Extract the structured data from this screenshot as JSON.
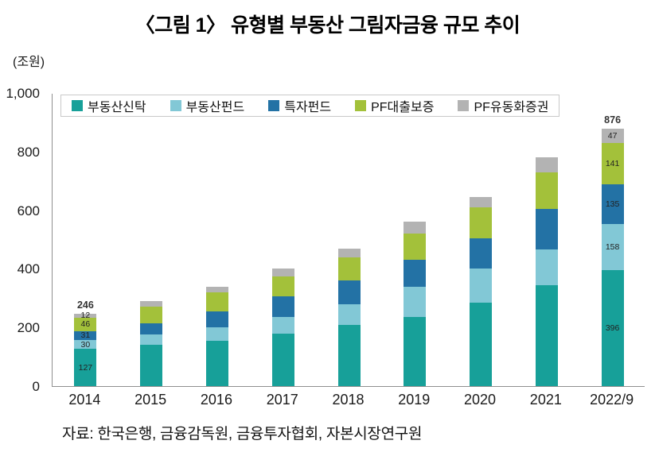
{
  "title": "〈그림 1〉 유형별 부동산 그림자금융 규모 추이",
  "unit_label": "(조원)",
  "source": "자료: 한국은행, 금융감독원, 금융투자협회, 자본시장연구원",
  "chart_data": {
    "type": "bar",
    "stacked": true,
    "title": "〈그림 1〉 유형별 부동산 그림자금융 규모 추이",
    "ylabel": "(조원)",
    "ylim": [
      0,
      1000
    ],
    "yticks": [
      0,
      200,
      400,
      600,
      800,
      1000
    ],
    "ytick_labels": [
      "0",
      "200",
      "400",
      "600",
      "800",
      "1,000"
    ],
    "grid": false,
    "legend_position": "top-inside",
    "categories": [
      "2014",
      "2015",
      "2016",
      "2017",
      "2018",
      "2019",
      "2020",
      "2021",
      "2022/9"
    ],
    "series": [
      {
        "name": "부동산신탁",
        "color": "#17a099",
        "values": [
          127,
          140,
          155,
          180,
          210,
          235,
          285,
          345,
          396
        ]
      },
      {
        "name": "부동산펀드",
        "color": "#82c8d6",
        "values": [
          30,
          35,
          45,
          55,
          70,
          105,
          115,
          120,
          158
        ]
      },
      {
        "name": "특자펀드",
        "color": "#2372a5",
        "values": [
          31,
          40,
          55,
          70,
          80,
          90,
          105,
          140,
          135
        ]
      },
      {
        "name": "PF대출보증",
        "color": "#a3c13a",
        "values": [
          46,
          55,
          65,
          70,
          80,
          90,
          105,
          125,
          141
        ]
      },
      {
        "name": "PF유동화증권",
        "color": "#b3b3b3",
        "values": [
          12,
          20,
          20,
          25,
          30,
          40,
          35,
          50,
          47
        ]
      }
    ],
    "labeled_categories": [
      "2014",
      "2022/9"
    ],
    "totals": {
      "2014": "246",
      "2022/9": "876"
    }
  }
}
